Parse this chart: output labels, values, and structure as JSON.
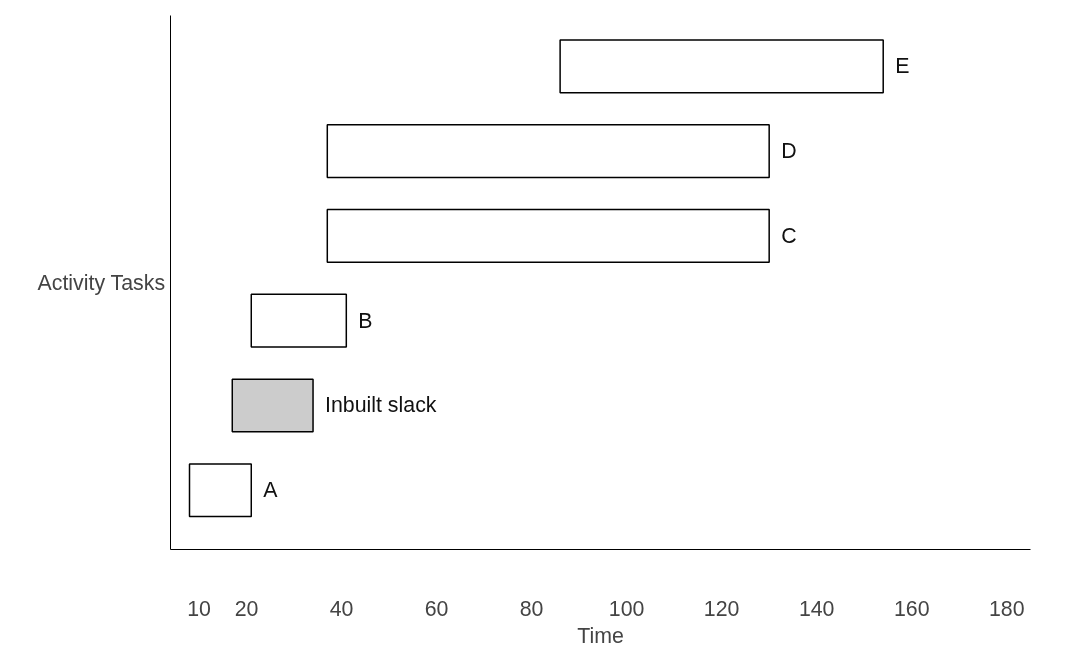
{
  "chart_data": {
    "type": "bar",
    "orientation": "horizontal",
    "categories": [
      "E",
      "D",
      "C",
      "B",
      "Inbuilt slack",
      "A"
    ],
    "base": [
      86,
      37,
      37,
      21,
      17,
      8
    ],
    "values": [
      68,
      93,
      93,
      20,
      17,
      13
    ],
    "colors": [
      "#ffffff",
      "#ffffff",
      "#ffffff",
      "#ffffff",
      "#cccccc",
      "#ffffff"
    ],
    "xlabel": "Time",
    "ylabel": "Activity Tasks",
    "xlim": [
      4,
      185
    ],
    "xticks": [
      10,
      20,
      40,
      60,
      80,
      100,
      120,
      140,
      160,
      180
    ],
    "grid": false
  }
}
